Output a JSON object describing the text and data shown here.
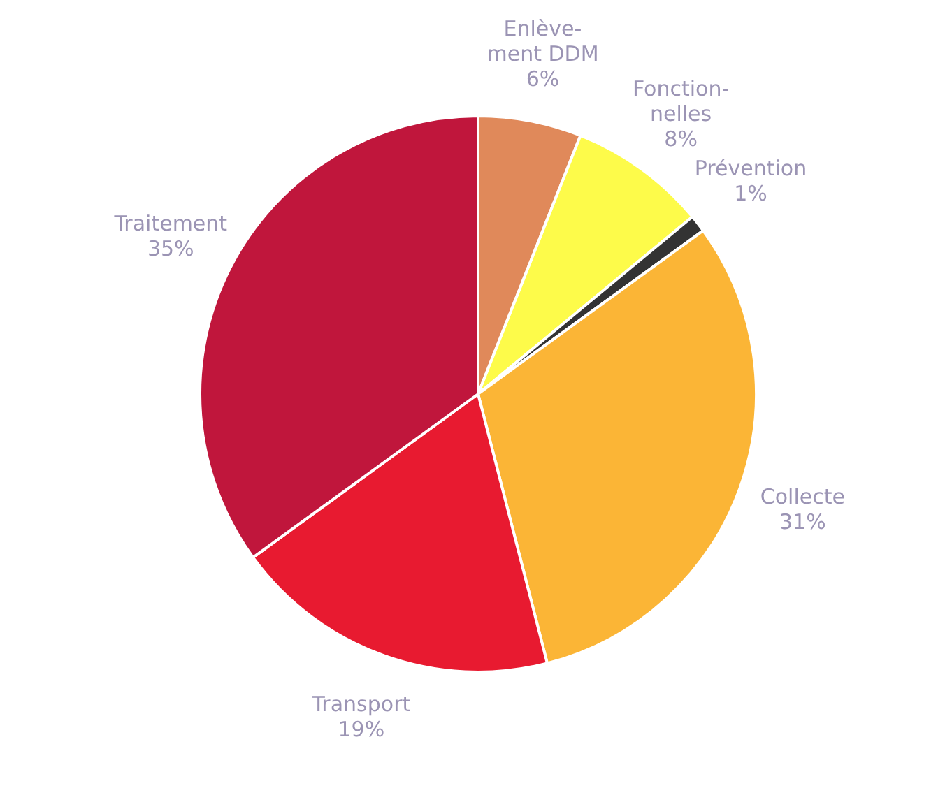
{
  "chart_data": {
    "type": "pie",
    "categories": [
      "Enlève-\nment DDM",
      "Fonction-\nnelles",
      "Prévention",
      "Collecte",
      "Transport",
      "Traitement"
    ],
    "values": [
      6,
      8,
      1,
      31,
      19,
      35
    ],
    "value_labels": [
      "6%",
      "8%",
      "1%",
      "31%",
      "19%",
      "35%"
    ],
    "colors": [
      "#e0895a",
      "#fdfb4a",
      "#333333",
      "#fbb536",
      "#e81a30",
      "#c0163c"
    ],
    "legend": false
  }
}
